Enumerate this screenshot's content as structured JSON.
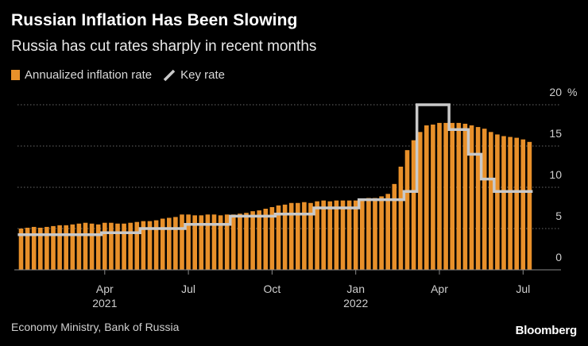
{
  "header": {
    "title": "Russian Inflation Has Been Slowing",
    "subtitle": "Russia has cut rates sharply in recent months"
  },
  "legend": {
    "bar_label": "Annualized inflation rate",
    "line_label": "Key rate"
  },
  "footer": {
    "source": "Economy Ministry, Bank of Russia",
    "brand": "Bloomberg"
  },
  "colors": {
    "bar": "#e8902a",
    "line": "#c9c9c9",
    "grid": "#6a6a6a",
    "background": "#000000"
  },
  "chart_data": {
    "type": "bar",
    "title": "Russian Inflation Has Been Slowing",
    "subtitle": "Russia has cut rates sharply in recent months",
    "ylim": [
      0,
      20
    ],
    "ylabel_unit": "%",
    "y_ticks": [
      "20",
      "15",
      "10",
      "5",
      "0"
    ],
    "y_tick_values": [
      20,
      15,
      10,
      5,
      0
    ],
    "x_ticks": [
      {
        "label": "Apr",
        "year": "2021",
        "week_index": 13
      },
      {
        "label": "Jul",
        "year": "",
        "week_index": 26
      },
      {
        "label": "Oct",
        "year": "",
        "week_index": 39
      },
      {
        "label": "Jan",
        "year": "2022",
        "week_index": 52
      },
      {
        "label": "Apr",
        "year": "",
        "week_index": 65
      },
      {
        "label": "Jul",
        "year": "",
        "week_index": 78
      }
    ],
    "series": [
      {
        "name": "Annualized inflation rate",
        "kind": "bar",
        "values": [
          5.0,
          5.1,
          5.2,
          5.1,
          5.2,
          5.3,
          5.4,
          5.4,
          5.5,
          5.6,
          5.7,
          5.6,
          5.5,
          5.7,
          5.7,
          5.6,
          5.6,
          5.7,
          5.8,
          5.9,
          5.9,
          6.0,
          6.2,
          6.3,
          6.4,
          6.7,
          6.7,
          6.6,
          6.6,
          6.7,
          6.7,
          6.6,
          6.7,
          6.7,
          6.8,
          6.9,
          7.1,
          7.2,
          7.4,
          7.6,
          7.8,
          7.9,
          8.1,
          8.1,
          8.2,
          8.1,
          8.3,
          8.4,
          8.3,
          8.4,
          8.4,
          8.4,
          8.4,
          8.6,
          8.7,
          8.7,
          8.9,
          9.2,
          10.4,
          12.5,
          14.5,
          15.7,
          16.7,
          17.5,
          17.6,
          17.8,
          17.8,
          17.8,
          17.8,
          17.7,
          17.5,
          17.3,
          17.1,
          16.7,
          16.4,
          16.2,
          16.1,
          16.0,
          15.8,
          15.5
        ],
        "start_week": 0
      },
      {
        "name": "Key rate",
        "kind": "line",
        "values": [
          4.25,
          4.25,
          4.25,
          4.25,
          4.25,
          4.25,
          4.25,
          4.25,
          4.25,
          4.25,
          4.25,
          4.25,
          4.25,
          4.5,
          4.5,
          4.5,
          4.5,
          4.5,
          4.5,
          5.0,
          5.0,
          5.0,
          5.0,
          5.0,
          5.0,
          5.0,
          5.5,
          5.5,
          5.5,
          5.5,
          5.5,
          5.5,
          5.5,
          6.5,
          6.5,
          6.5,
          6.5,
          6.5,
          6.5,
          6.5,
          6.75,
          6.75,
          6.75,
          6.75,
          6.75,
          6.75,
          7.5,
          7.5,
          7.5,
          7.5,
          7.5,
          7.5,
          7.5,
          8.5,
          8.5,
          8.5,
          8.5,
          8.5,
          8.5,
          8.5,
          9.5,
          9.5,
          20.0,
          20.0,
          20.0,
          20.0,
          20.0,
          17.0,
          17.0,
          17.0,
          14.0,
          14.0,
          11.0,
          11.0,
          9.5,
          9.5,
          9.5,
          9.5,
          9.5,
          9.5
        ],
        "start_week": 0
      }
    ]
  }
}
